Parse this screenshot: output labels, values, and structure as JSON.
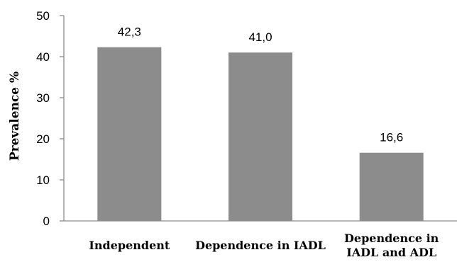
{
  "chart_data": {
    "type": "bar",
    "categories": [
      [
        "Independent"
      ],
      [
        "Dependence in IADL"
      ],
      [
        "Dependence in",
        "IADL and ADL"
      ]
    ],
    "values": [
      42.3,
      41.0,
      16.6
    ],
    "data_labels": [
      "42,3",
      "41,0",
      "16,6"
    ],
    "title": "",
    "xlabel": "",
    "ylabel": "Prevalence %",
    "ylim": [
      0,
      50
    ],
    "yticks": [
      0,
      10,
      20,
      30,
      40,
      50
    ],
    "grid": false,
    "legend": "none",
    "bar_color": "#8c8c8c",
    "axis_color": "#8c8c8c"
  }
}
